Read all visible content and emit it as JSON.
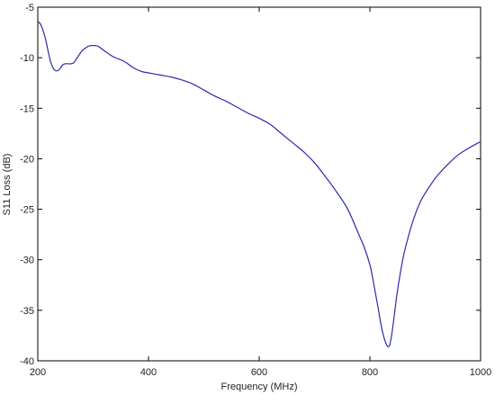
{
  "chart_data": {
    "type": "line",
    "title": "",
    "xlabel": "Frequency (MHz)",
    "ylabel": "S11 Loss (dB)",
    "xlim": [
      200,
      1000
    ],
    "ylim": [
      -40,
      -5
    ],
    "x_ticks": [
      200,
      400,
      600,
      800,
      1000
    ],
    "y_ticks": [
      -5,
      -10,
      -15,
      -20,
      -25,
      -30,
      -35,
      -40
    ],
    "x_tick_labels": [
      "200",
      "400",
      "600",
      "800",
      "1000"
    ],
    "y_tick_labels": [
      "-5",
      "-10",
      "-15",
      "-20",
      "-25",
      "-30",
      "-35",
      "-40"
    ],
    "grid": false,
    "legend": "none",
    "line_color": "#2b2bb0",
    "series": [
      {
        "x": [
          200,
          205,
          210,
          215,
          220,
          225,
          230,
          235,
          240,
          245,
          250,
          255,
          260,
          265,
          270,
          275,
          280,
          285,
          290,
          295,
          300,
          305,
          310,
          315,
          320,
          330,
          340,
          350,
          360,
          370,
          380,
          390,
          400,
          420,
          440,
          460,
          480,
          500,
          520,
          540,
          560,
          580,
          600,
          620,
          640,
          660,
          680,
          700,
          720,
          740,
          760,
          780,
          790,
          800,
          805,
          810,
          815,
          820,
          825,
          830,
          833,
          836,
          840,
          845,
          850,
          860,
          870,
          880,
          890,
          900,
          920,
          940,
          960,
          980,
          1000
        ],
        "y": [
          -6.4,
          -6.7,
          -7.4,
          -8.4,
          -9.7,
          -10.7,
          -11.2,
          -11.3,
          -11.1,
          -10.7,
          -10.6,
          -10.6,
          -10.6,
          -10.5,
          -10.1,
          -9.7,
          -9.3,
          -9.1,
          -8.9,
          -8.8,
          -8.8,
          -8.8,
          -8.9,
          -9.1,
          -9.3,
          -9.7,
          -10.0,
          -10.2,
          -10.5,
          -10.9,
          -11.2,
          -11.4,
          -11.5,
          -11.7,
          -11.9,
          -12.2,
          -12.6,
          -13.2,
          -13.8,
          -14.3,
          -14.9,
          -15.5,
          -16.0,
          -16.6,
          -17.5,
          -18.4,
          -19.3,
          -20.4,
          -21.8,
          -23.3,
          -25.0,
          -27.5,
          -28.8,
          -30.5,
          -31.8,
          -33.3,
          -34.8,
          -36.4,
          -37.6,
          -38.4,
          -38.6,
          -38.4,
          -37.2,
          -35.1,
          -33.0,
          -29.8,
          -27.6,
          -25.8,
          -24.4,
          -23.4,
          -21.8,
          -20.6,
          -19.6,
          -18.9,
          -18.3
        ]
      }
    ]
  }
}
